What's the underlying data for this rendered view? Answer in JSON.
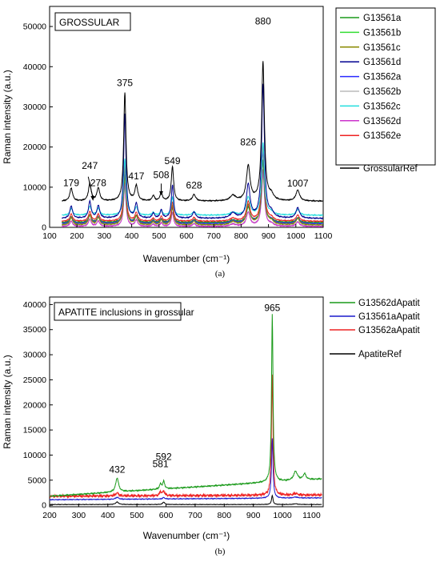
{
  "chart_data": [
    {
      "type": "line",
      "panel_label": "(a)",
      "title": "GROSSULAR",
      "xlabel": "Wavenumber (cm⁻¹)",
      "ylabel": "Raman intensity (a.u.)",
      "xlim": [
        100,
        1100
      ],
      "ylim": [
        0,
        55000
      ],
      "xticks": [
        100,
        200,
        300,
        400,
        500,
        600,
        700,
        800,
        900,
        1000,
        1100
      ],
      "yticks": [
        0,
        10000,
        20000,
        30000,
        40000,
        50000
      ],
      "legend_position": "right, outside",
      "peak_labels": [
        {
          "x": 179,
          "y": 10300,
          "text": "179"
        },
        {
          "x": 247,
          "y": 14500,
          "text": "247"
        },
        {
          "x": 278,
          "y": 10300,
          "text": "278"
        },
        {
          "x": 375,
          "y": 35200,
          "text": "375"
        },
        {
          "x": 417,
          "y": 12000,
          "text": "417"
        },
        {
          "x": 508,
          "y": 12300,
          "text": "508"
        },
        {
          "x": 549,
          "y": 15700,
          "text": "549"
        },
        {
          "x": 628,
          "y": 9700,
          "text": "628"
        },
        {
          "x": 826,
          "y": 20400,
          "text": "826"
        },
        {
          "x": 880,
          "y": 50500,
          "text": "880"
        },
        {
          "x": 1007,
          "y": 10200,
          "text": "1007"
        }
      ],
      "peaks": [
        {
          "x": 179,
          "w": 6,
          "rel": 0.12
        },
        {
          "x": 247,
          "w": 6,
          "rel": 0.16
        },
        {
          "x": 278,
          "w": 6,
          "rel": 0.12
        },
        {
          "x": 375,
          "w": 5,
          "rel": 1.0
        },
        {
          "x": 417,
          "w": 6,
          "rel": 0.14
        },
        {
          "x": 479,
          "w": 5,
          "rel": 0.05
        },
        {
          "x": 508,
          "w": 5,
          "rel": 0.08
        },
        {
          "x": 549,
          "w": 5,
          "rel": 0.32
        },
        {
          "x": 628,
          "w": 7,
          "rel": 0.06
        },
        {
          "x": 770,
          "w": 12,
          "rel": 0.05
        },
        {
          "x": 826,
          "w": 8,
          "rel": 0.32
        },
        {
          "x": 880,
          "w": 6,
          "rel": 1.28
        },
        {
          "x": 910,
          "w": 10,
          "rel": 0.05
        },
        {
          "x": 1007,
          "w": 8,
          "rel": 0.1
        }
      ],
      "series": [
        {
          "name": "G13561a",
          "color": "#1a9a1a",
          "baseline": 1200,
          "scale": 12000
        },
        {
          "name": "G13561b",
          "color": "#33dd33",
          "baseline": 1000,
          "scale": 12000
        },
        {
          "name": "G13561c",
          "color": "#8a8a00",
          "baseline": 600,
          "scale": 15500
        },
        {
          "name": "G13561d",
          "color": "#000090",
          "baseline": 2200,
          "scale": 26000
        },
        {
          "name": "G13562a",
          "color": "#2a2aff",
          "baseline": 900,
          "scale": 14000
        },
        {
          "name": "G13562b",
          "color": "#bbbbbb",
          "baseline": 400,
          "scale": 10000
        },
        {
          "name": "G13562c",
          "color": "#22dddd",
          "baseline": 3000,
          "scale": 14000
        },
        {
          "name": "G13562d",
          "color": "#cc33cc",
          "baseline": 200,
          "scale": 11000
        },
        {
          "name": "G13562e",
          "color": "#ee2222",
          "baseline": 1500,
          "scale": 15000
        },
        {
          "name": "GrossularRef",
          "color": "#000000",
          "baseline": 6500,
          "scale": 27000
        }
      ]
    },
    {
      "type": "line",
      "panel_label": "(b)",
      "title": "APATITE inclusions in grossular",
      "xlabel": "Wavenumber (cm⁻¹)",
      "ylabel": "Raman intensity (a.u.)",
      "xlim": [
        200,
        1140
      ],
      "ylim": [
        -300,
        41500
      ],
      "xticks": [
        200,
        300,
        400,
        500,
        600,
        700,
        800,
        900,
        1000,
        1100
      ],
      "yticks": [
        0,
        5000,
        10000,
        15000,
        20000,
        25000,
        30000,
        35000,
        40000
      ],
      "legend_position": "top-right, outside",
      "peak_labels": [
        {
          "x": 432,
          "y": 6500,
          "text": "432"
        },
        {
          "x": 581,
          "y": 7600,
          "text": "581"
        },
        {
          "x": 592,
          "y": 9000,
          "text": "592"
        },
        {
          "x": 965,
          "y": 38700,
          "text": "965"
        }
      ],
      "series": [
        {
          "name": "G13562dApatit",
          "color": "#1a9a1a",
          "baseline": 1800,
          "slope": 2800,
          "noise": 150,
          "peaks": [
            {
              "x": 432,
              "w": 6,
              "h": 2800
            },
            {
              "x": 581,
              "w": 4,
              "h": 1000
            },
            {
              "x": 592,
              "w": 4,
              "h": 1500
            },
            {
              "x": 965,
              "w": 3,
              "h": 33500
            },
            {
              "x": 1045,
              "w": 8,
              "h": 1800
            },
            {
              "x": 1076,
              "w": 6,
              "h": 1200
            }
          ]
        },
        {
          "name": "G13561aApatit",
          "color": "#1a1acc",
          "baseline": 1100,
          "slope": 300,
          "noise": 100,
          "peaks": [
            {
              "x": 432,
              "w": 6,
              "h": 400
            },
            {
              "x": 592,
              "w": 4,
              "h": 300
            },
            {
              "x": 965,
              "w": 3,
              "h": 12000
            },
            {
              "x": 1045,
              "w": 8,
              "h": 200
            }
          ]
        },
        {
          "name": "G13562aApatit",
          "color": "#ee2222",
          "baseline": 1800,
          "slope": 200,
          "noise": 300,
          "peaks": [
            {
              "x": 432,
              "w": 6,
              "h": 600
            },
            {
              "x": 581,
              "w": 4,
              "h": 800
            },
            {
              "x": 592,
              "w": 4,
              "h": 900
            },
            {
              "x": 965,
              "w": 3,
              "h": 24000
            },
            {
              "x": 1045,
              "w": 8,
              "h": 300
            }
          ]
        },
        {
          "name": "ApatiteRef",
          "color": "#000000",
          "baseline": 150,
          "slope": 0,
          "noise": 60,
          "peaks": [
            {
              "x": 432,
              "w": 6,
              "h": 500
            },
            {
              "x": 592,
              "w": 4,
              "h": 500
            },
            {
              "x": 965,
              "w": 3,
              "h": 1800
            },
            {
              "x": 1045,
              "w": 8,
              "h": 150
            }
          ]
        }
      ]
    }
  ]
}
